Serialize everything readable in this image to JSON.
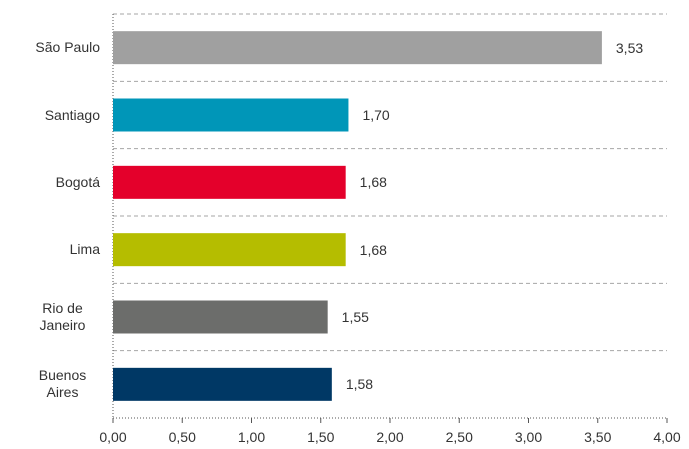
{
  "chart_data": {
    "type": "bar",
    "orientation": "horizontal",
    "categories": [
      "São Paulo",
      "Santiago",
      "Bogotá",
      "Lima",
      "Rio de Janeiro",
      "Buenos Aires"
    ],
    "values": [
      3.53,
      1.7,
      1.68,
      1.68,
      1.55,
      1.58
    ],
    "value_labels": [
      "3,53",
      "1,70",
      "1,68",
      "1,68",
      "1,55",
      "1,58"
    ],
    "colors": [
      "#a0a0a0",
      "#0096b8",
      "#e4002b",
      "#b5bd00",
      "#6c6d6b",
      "#003865"
    ],
    "xlim": [
      0,
      4
    ],
    "xticks": [
      {
        "value": 0,
        "label": "0,00"
      },
      {
        "value": 0.5,
        "label": "0,50"
      },
      {
        "value": 1,
        "label": "1,00"
      },
      {
        "value": 1.5,
        "label": "1,50"
      },
      {
        "value": 2,
        "label": "2,00"
      },
      {
        "value": 2.5,
        "label": "2,50"
      },
      {
        "value": 3,
        "label": "3,00"
      },
      {
        "value": 3.5,
        "label": "3,50"
      },
      {
        "value": 4,
        "label": "4,00"
      }
    ],
    "grid": true
  }
}
